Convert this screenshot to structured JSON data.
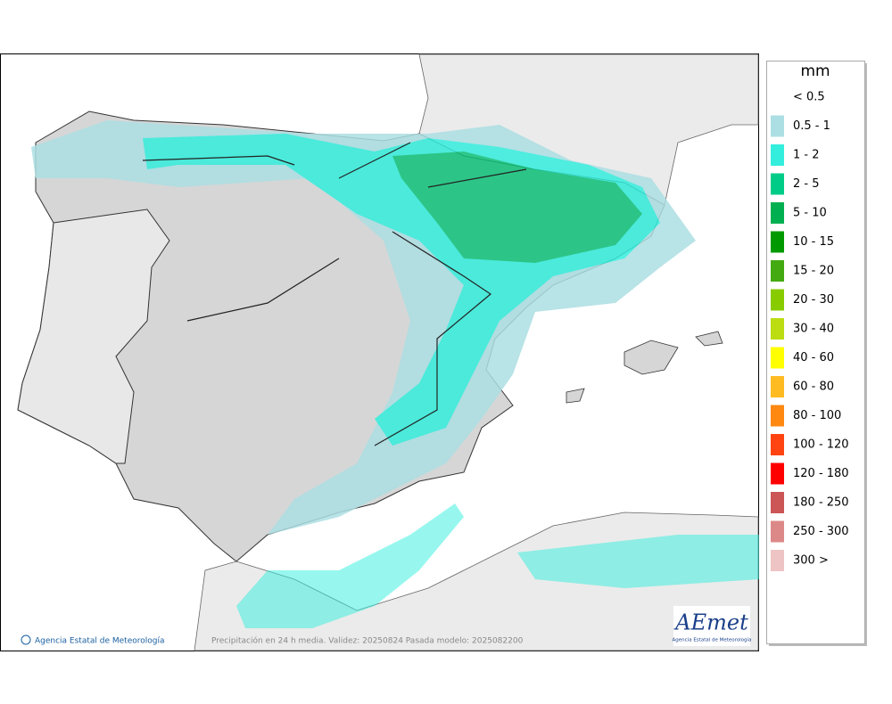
{
  "map": {
    "footer_credit": "Agencia Estatal de Meteorología",
    "footer_caption": "Precipitación en 24 h media. Validez: 20250824 Pasada modelo: 2025082200",
    "logo": {
      "name": "AEmet",
      "subtitle": "Agencia Estatal de Meteorología"
    }
  },
  "legend": {
    "unit": "mm",
    "items": [
      {
        "label": "< 0.5"
      },
      {
        "label": "0.5 - 1",
        "color": "#acdfe3"
      },
      {
        "label": "1 - 2",
        "color": "#33eedd"
      },
      {
        "label": "2 - 5",
        "color": "#00cc88"
      },
      {
        "label": "5 - 10",
        "color": "#00b050"
      },
      {
        "label": "10 - 15",
        "color": "#009a00"
      },
      {
        "label": "15 - 20",
        "color": "#44aa11"
      },
      {
        "label": "20 - 30",
        "color": "#88cc00"
      },
      {
        "label": "30 - 40",
        "color": "#bbdd11"
      },
      {
        "label": "40 - 60",
        "color": "#ffff00"
      },
      {
        "label": "60 - 80",
        "color": "#ffbb22"
      },
      {
        "label": "80 - 100",
        "color": "#ff8811"
      },
      {
        "label": "100 - 120",
        "color": "#ff4411"
      },
      {
        "label": "120 - 180",
        "color": "#ff0000"
      },
      {
        "label": "180 - 250",
        "color": "#cc5555"
      },
      {
        "label": "250 - 300",
        "color": "#dd8888"
      },
      {
        "label": "300 >",
        "color": "#eec4c4"
      }
    ]
  }
}
